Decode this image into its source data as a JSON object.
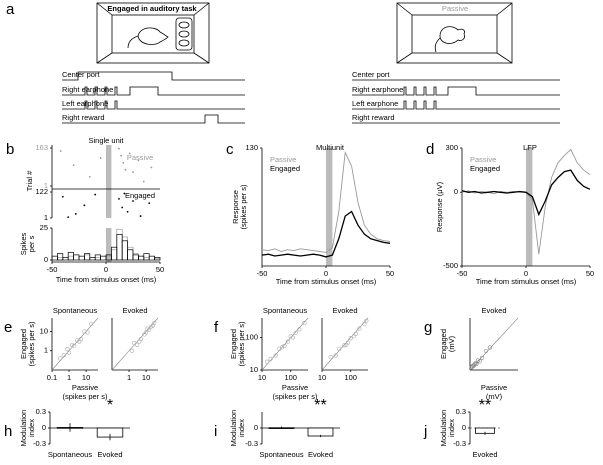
{
  "panel_a": {
    "label": "a",
    "engaged_title": "Engaged in auditory task",
    "passive_title": "Passive",
    "signals": [
      "Center port",
      "Right earphone",
      "Left earphone",
      "Right reward"
    ]
  },
  "panel_b": {
    "label": "b",
    "title": "Single unit",
    "ylabel": "Trial #",
    "xlabel": "Time from stimulus onset (ms)",
    "xlim": [
      -50,
      50
    ],
    "xticks": [
      -50,
      0,
      50
    ],
    "stimulus": [
      0,
      5
    ],
    "passive": {
      "name": "Passive",
      "color": "#999999",
      "ylim": [
        1,
        163
      ],
      "yticks": [
        163,
        1
      ],
      "x": [
        -42,
        -30,
        -15,
        -5,
        12,
        14,
        16,
        18,
        22,
        25,
        30,
        35,
        42
      ],
      "y": [
        150,
        90,
        40,
        120,
        160,
        130,
        100,
        70,
        140,
        60,
        110,
        20,
        80
      ]
    },
    "engaged": {
      "name": "Engaged",
      "color": "#000000",
      "ylim": [
        1,
        122
      ],
      "yticks": [
        122,
        1
      ],
      "x": [
        -40,
        -28,
        -20,
        -10,
        12,
        15,
        17,
        20,
        25,
        32,
        40,
        -35
      ],
      "y": [
        100,
        20,
        60,
        110,
        90,
        50,
        115,
        30,
        80,
        10,
        70,
        5
      ]
    },
    "psth": {
      "ylabel": [
        "Spikes",
        "per s"
      ],
      "ylim": [
        0,
        25
      ],
      "yticks": [
        0,
        25
      ],
      "bins": [
        -50,
        -45,
        -40,
        -35,
        -30,
        -25,
        -20,
        -15,
        -10,
        -5,
        0,
        5,
        10,
        15,
        20,
        25,
        30,
        35,
        40,
        45,
        50
      ],
      "series": [
        {
          "name": "Passive",
          "color": "#999999",
          "values": [
            0,
            2,
            0,
            3,
            0,
            0,
            4,
            0,
            2,
            0,
            3,
            8,
            24,
            18,
            10,
            5,
            3,
            2,
            0,
            1
          ]
        },
        {
          "name": "Engaged",
          "color": "#000000",
          "values": [
            3,
            5,
            2,
            6,
            4,
            3,
            5,
            2,
            4,
            3,
            4,
            10,
            20,
            15,
            8,
            4,
            3,
            5,
            3,
            2
          ]
        }
      ]
    }
  },
  "panel_c": {
    "label": "c",
    "type": "line",
    "title": "Multiunit",
    "ylabel": [
      "Response",
      "(spikes per s)"
    ],
    "xlabel": "Time from stimulus onset (ms)",
    "xlim": [
      -50,
      50
    ],
    "xticks": [
      -50,
      0,
      50
    ],
    "ylim": [
      0,
      130
    ],
    "yticks": [
      130
    ],
    "stimulus": [
      0,
      5
    ],
    "x": [
      -50,
      -45,
      -40,
      -35,
      -30,
      -25,
      -20,
      -15,
      -10,
      -5,
      0,
      5,
      10,
      15,
      20,
      25,
      30,
      35,
      40,
      45,
      50
    ],
    "series": [
      {
        "name": "Passive",
        "color": "#999999",
        "values": [
          18,
          17,
          19,
          16,
          18,
          17,
          19,
          18,
          17,
          16,
          15,
          20,
          60,
          125,
          110,
          70,
          45,
          35,
          30,
          28,
          27
        ]
      },
      {
        "name": "Engaged",
        "color": "#000000",
        "values": [
          12,
          13,
          11,
          12,
          13,
          12,
          11,
          12,
          13,
          12,
          10,
          12,
          30,
          55,
          60,
          45,
          35,
          30,
          28,
          26,
          25
        ]
      }
    ]
  },
  "panel_d": {
    "label": "d",
    "type": "line",
    "title": "LFP",
    "ylabel": [
      "Response (μV)"
    ],
    "xlabel": "Time from stimulus onset (ms)",
    "xlim": [
      -50,
      50
    ],
    "xticks": [
      -50,
      0,
      50
    ],
    "ylim": [
      -500,
      300
    ],
    "yticks": [
      -500,
      0,
      300
    ],
    "stimulus": [
      0,
      5
    ],
    "x": [
      -50,
      -45,
      -40,
      -35,
      -30,
      -25,
      -20,
      -15,
      -10,
      -5,
      0,
      5,
      10,
      15,
      20,
      25,
      30,
      35,
      40,
      45,
      50
    ],
    "series": [
      {
        "name": "Passive",
        "color": "#999999",
        "values": [
          0,
          10,
          -5,
          5,
          0,
          -10,
          5,
          0,
          5,
          0,
          0,
          -50,
          -420,
          -100,
          100,
          200,
          250,
          290,
          200,
          150,
          120
        ]
      },
      {
        "name": "Engaged",
        "color": "#000000",
        "values": [
          10,
          0,
          5,
          -5,
          0,
          5,
          0,
          -5,
          0,
          5,
          0,
          -30,
          -150,
          -60,
          50,
          100,
          140,
          150,
          80,
          40,
          20
        ]
      }
    ]
  },
  "panel_e": {
    "label": "e",
    "type": "scatter",
    "log": true,
    "color": "#aaaaaa",
    "ylabel": [
      "Engaged",
      "(spikes per s)"
    ],
    "xlabel": [
      "Passive",
      "(spikes per s)"
    ],
    "xlim": [
      0.1,
      50
    ],
    "ylim": [
      0.1,
      50
    ],
    "yticks": [
      1,
      10
    ],
    "plots": [
      {
        "title": "Spontaneous",
        "xticks": [
          0.1,
          1,
          10
        ],
        "x": [
          0.3,
          0.5,
          1,
          1.5,
          2,
          3,
          5,
          8,
          12,
          20,
          0.8,
          4
        ],
        "y": [
          0.4,
          0.6,
          0.8,
          2,
          1.8,
          3.5,
          4,
          10,
          9,
          25,
          1.2,
          3
        ]
      },
      {
        "title": "Evoked",
        "xticks": [
          1,
          10
        ],
        "x": [
          1.5,
          2,
          3,
          5,
          8,
          10,
          15,
          20,
          25,
          30,
          4,
          12
        ],
        "y": [
          1,
          2.5,
          2,
          4,
          7,
          9,
          12,
          18,
          20,
          28,
          3,
          14
        ]
      }
    ]
  },
  "panel_f": {
    "label": "f",
    "type": "scatter",
    "log": true,
    "color": "#aaaaaa",
    "ylabel": [
      "Engaged",
      "(spikes per s)"
    ],
    "xlabel": [
      "Passive",
      "(spikes per s)"
    ],
    "xlim": [
      10,
      400
    ],
    "ylim": [
      10,
      400
    ],
    "yticks": [
      10,
      100
    ],
    "plots": [
      {
        "title": "Spontaneous",
        "xticks": [
          10,
          100
        ],
        "x": [
          15,
          20,
          30,
          40,
          60,
          80,
          100,
          150,
          200,
          300,
          50,
          120
        ],
        "y": [
          18,
          22,
          28,
          45,
          55,
          75,
          110,
          140,
          180,
          280,
          50,
          100
        ]
      },
      {
        "title": "Evoked",
        "xticks": [
          10,
          100
        ],
        "x": [
          20,
          30,
          40,
          60,
          80,
          100,
          150,
          200,
          300,
          350,
          70,
          130
        ],
        "y": [
          25,
          28,
          45,
          58,
          70,
          95,
          130,
          190,
          260,
          330,
          60,
          110
        ]
      }
    ]
  },
  "panel_g": {
    "label": "g",
    "type": "scatter",
    "log": false,
    "color": "#888888",
    "ylabel": [
      "Engaged",
      "(mV)"
    ],
    "xlabel": [
      "Passive",
      "(mV)"
    ],
    "xlim": [
      0,
      0.6
    ],
    "ylim": [
      0,
      0.6
    ],
    "yticks": [],
    "plots": [
      {
        "title": "Evoked",
        "xticks": [],
        "x": [
          0.02,
          0.03,
          0.05,
          0.06,
          0.08,
          0.1,
          0.12,
          0.15,
          0.2,
          0.25,
          0.04,
          0.07
        ],
        "y": [
          0.03,
          0.04,
          0.05,
          0.07,
          0.07,
          0.11,
          0.1,
          0.14,
          0.22,
          0.26,
          0.05,
          0.08
        ]
      }
    ]
  },
  "panel_h": {
    "label": "h",
    "type": "bar",
    "ylabel": [
      "Modulation",
      "index"
    ],
    "ylim": [
      -0.3,
      0.3
    ],
    "yticks": [
      0.3,
      0,
      -0.3
    ],
    "categories": [
      "Spontaneous",
      "Evoked"
    ],
    "values": [
      0.01,
      -0.17
    ],
    "errors": [
      0.08,
      0.06
    ],
    "annotation": "*",
    "zero_line": "solid"
  },
  "panel_i": {
    "label": "i",
    "type": "bar",
    "ylabel": [
      "Modulation",
      "index"
    ],
    "ylim": [
      -0.3,
      0.3
    ],
    "yticks": [
      0,
      -0.3
    ],
    "categories": [
      "Spontaneous",
      "Evoked"
    ],
    "values": [
      0.005,
      -0.15
    ],
    "errors": [
      0.02,
      0.02
    ],
    "annotation": "**",
    "zero_line": "solid"
  },
  "panel_j": {
    "label": "j",
    "type": "bar",
    "ylabel": [
      "Modulation",
      "index"
    ],
    "ylim": [
      -0.3,
      0.3
    ],
    "yticks": [
      0.3,
      0,
      -0.3
    ],
    "categories": [
      "Evoked"
    ],
    "values": [
      -0.1
    ],
    "errors": [
      0.03
    ],
    "annotation": "**",
    "zero_line": "dashed"
  }
}
